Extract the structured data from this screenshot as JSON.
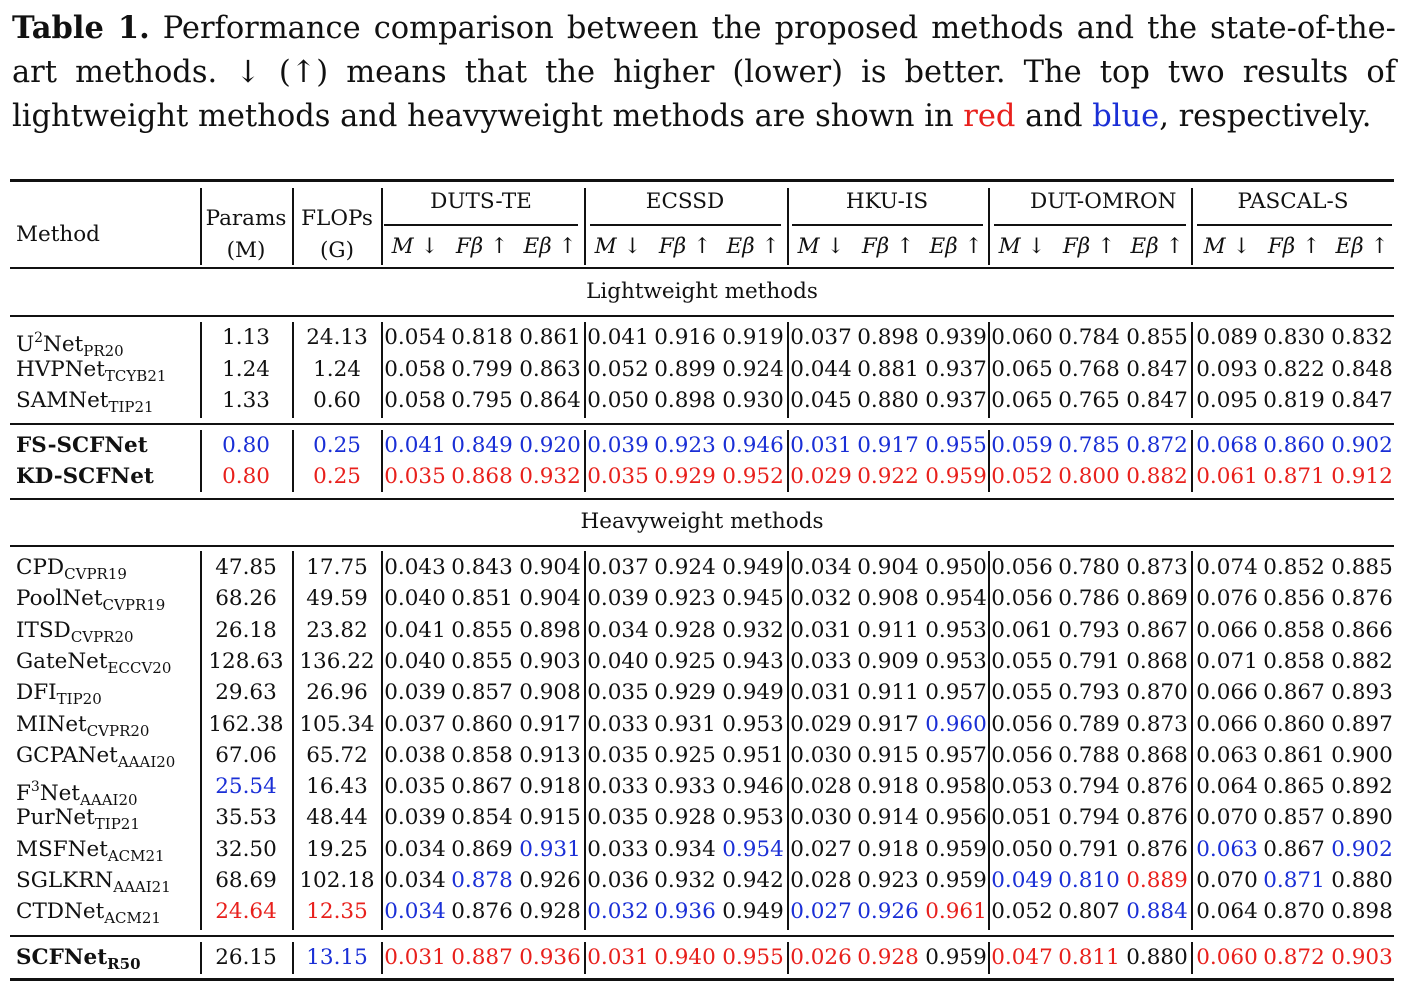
{
  "caption": {
    "label": "Table 1.",
    "text_part1": " Performance comparison between the proposed methods and the state-of-the-art methods. ↓ (↑) means that the higher (lower) is better. The top two results of lightweight methods and heavyweight methods are shown in ",
    "red_word": "red",
    "and_word": " and ",
    "blue_word": "blue",
    "text_end": ", respectively."
  },
  "header": {
    "method": "Method",
    "params_top": "Params",
    "params_unit": "(M)",
    "flops_top": "FLOPs",
    "flops_unit": "(G)",
    "datasets": [
      "DUTS-TE",
      "ECSSD",
      "HKU-IS",
      "DUT-OMRON",
      "PASCAL-S"
    ],
    "metrics": [
      "M ↓",
      "Fβ ↑",
      "Eβ ↑"
    ]
  },
  "sections": {
    "light": "Lightweight methods",
    "heavy": "Heavyweight methods"
  },
  "colors": {
    "red": "#e8201c",
    "blue": "#1a2fd6"
  },
  "rows": [
    {
      "name": "U",
      "sup": "2",
      "name2": "Net",
      "sub": "PR20",
      "bold": false,
      "params": "1.13",
      "flops": "24.13",
      "vals": [
        "0.054",
        "0.818",
        "0.861",
        "0.041",
        "0.916",
        "0.919",
        "0.037",
        "0.898",
        "0.939",
        "0.060",
        "0.784",
        "0.855",
        "0.089",
        "0.830",
        "0.832"
      ],
      "colors": {}
    },
    {
      "name": "HVPNet",
      "sup": "",
      "name2": "",
      "sub": "TCYB21",
      "bold": false,
      "params": "1.24",
      "flops": "1.24",
      "vals": [
        "0.058",
        "0.799",
        "0.863",
        "0.052",
        "0.899",
        "0.924",
        "0.044",
        "0.881",
        "0.937",
        "0.065",
        "0.768",
        "0.847",
        "0.093",
        "0.822",
        "0.848"
      ],
      "colors": {}
    },
    {
      "name": "SAMNet",
      "sup": "",
      "name2": "",
      "sub": "TIP21",
      "bold": false,
      "params": "1.33",
      "flops": "0.60",
      "vals": [
        "0.058",
        "0.795",
        "0.864",
        "0.050",
        "0.898",
        "0.930",
        "0.045",
        "0.880",
        "0.937",
        "0.065",
        "0.765",
        "0.847",
        "0.095",
        "0.819",
        "0.847"
      ],
      "colors": {}
    },
    {
      "name": "FS-SCFNet",
      "sup": "",
      "name2": "",
      "sub": "",
      "bold": true,
      "params": "0.80",
      "flops": "0.25",
      "vals": [
        "0.041",
        "0.849",
        "0.920",
        "0.039",
        "0.923",
        "0.946",
        "0.031",
        "0.917",
        "0.955",
        "0.059",
        "0.785",
        "0.872",
        "0.068",
        "0.860",
        "0.902"
      ],
      "allcolor": "blue",
      "colors": {}
    },
    {
      "name": "KD-SCFNet",
      "sup": "",
      "name2": "",
      "sub": "",
      "bold": true,
      "params": "0.80",
      "flops": "0.25",
      "vals": [
        "0.035",
        "0.868",
        "0.932",
        "0.035",
        "0.929",
        "0.952",
        "0.029",
        "0.922",
        "0.959",
        "0.052",
        "0.800",
        "0.882",
        "0.061",
        "0.871",
        "0.912"
      ],
      "allcolor": "red",
      "colors": {}
    },
    {
      "name": "CPD",
      "sup": "",
      "name2": "",
      "sub": "CVPR19",
      "bold": false,
      "params": "47.85",
      "flops": "17.75",
      "vals": [
        "0.043",
        "0.843",
        "0.904",
        "0.037",
        "0.924",
        "0.949",
        "0.034",
        "0.904",
        "0.950",
        "0.056",
        "0.780",
        "0.873",
        "0.074",
        "0.852",
        "0.885"
      ],
      "colors": {}
    },
    {
      "name": "PoolNet",
      "sup": "",
      "name2": "",
      "sub": "CVPR19",
      "bold": false,
      "params": "68.26",
      "flops": "49.59",
      "vals": [
        "0.040",
        "0.851",
        "0.904",
        "0.039",
        "0.923",
        "0.945",
        "0.032",
        "0.908",
        "0.954",
        "0.056",
        "0.786",
        "0.869",
        "0.076",
        "0.856",
        "0.876"
      ],
      "colors": {}
    },
    {
      "name": "ITSD",
      "sup": "",
      "name2": "",
      "sub": "CVPR20",
      "bold": false,
      "params": "26.18",
      "flops": "23.82",
      "vals": [
        "0.041",
        "0.855",
        "0.898",
        "0.034",
        "0.928",
        "0.932",
        "0.031",
        "0.911",
        "0.953",
        "0.061",
        "0.793",
        "0.867",
        "0.066",
        "0.858",
        "0.866"
      ],
      "colors": {}
    },
    {
      "name": "GateNet",
      "sup": "",
      "name2": "",
      "sub": "ECCV20",
      "bold": false,
      "params": "128.63",
      "flops": "136.22",
      "vals": [
        "0.040",
        "0.855",
        "0.903",
        "0.040",
        "0.925",
        "0.943",
        "0.033",
        "0.909",
        "0.953",
        "0.055",
        "0.791",
        "0.868",
        "0.071",
        "0.858",
        "0.882"
      ],
      "colors": {}
    },
    {
      "name": "DFI",
      "sup": "",
      "name2": "",
      "sub": "TIP20",
      "bold": false,
      "params": "29.63",
      "flops": "26.96",
      "vals": [
        "0.039",
        "0.857",
        "0.908",
        "0.035",
        "0.929",
        "0.949",
        "0.031",
        "0.911",
        "0.957",
        "0.055",
        "0.793",
        "0.870",
        "0.066",
        "0.867",
        "0.893"
      ],
      "colors": {}
    },
    {
      "name": "MINet",
      "sup": "",
      "name2": "",
      "sub": "CVPR20",
      "bold": false,
      "params": "162.38",
      "flops": "105.34",
      "vals": [
        "0.037",
        "0.860",
        "0.917",
        "0.033",
        "0.931",
        "0.953",
        "0.029",
        "0.917",
        "0.960",
        "0.056",
        "0.789",
        "0.873",
        "0.066",
        "0.860",
        "0.897"
      ],
      "colors": {
        "8": "blue"
      }
    },
    {
      "name": "GCPANet",
      "sup": "",
      "name2": "",
      "sub": "AAAI20",
      "bold": false,
      "params": "67.06",
      "flops": "65.72",
      "vals": [
        "0.038",
        "0.858",
        "0.913",
        "0.035",
        "0.925",
        "0.951",
        "0.030",
        "0.915",
        "0.957",
        "0.056",
        "0.788",
        "0.868",
        "0.063",
        "0.861",
        "0.900"
      ],
      "colors": {}
    },
    {
      "name": "F",
      "sup": "3",
      "name2": "Net",
      "sub": "AAAI20",
      "bold": false,
      "params": "25.54",
      "flops": "16.43",
      "params_color": "blue",
      "vals": [
        "0.035",
        "0.867",
        "0.918",
        "0.033",
        "0.933",
        "0.946",
        "0.028",
        "0.918",
        "0.958",
        "0.053",
        "0.794",
        "0.876",
        "0.064",
        "0.865",
        "0.892"
      ],
      "colors": {}
    },
    {
      "name": "PurNet",
      "sup": "",
      "name2": "",
      "sub": "TIP21",
      "bold": false,
      "params": "35.53",
      "flops": "48.44",
      "vals": [
        "0.039",
        "0.854",
        "0.915",
        "0.035",
        "0.928",
        "0.953",
        "0.030",
        "0.914",
        "0.956",
        "0.051",
        "0.794",
        "0.876",
        "0.070",
        "0.857",
        "0.890"
      ],
      "colors": {}
    },
    {
      "name": "MSFNet",
      "sup": "",
      "name2": "",
      "sub": "ACM21",
      "bold": false,
      "params": "32.50",
      "flops": "19.25",
      "vals": [
        "0.034",
        "0.869",
        "0.931",
        "0.033",
        "0.934",
        "0.954",
        "0.027",
        "0.918",
        "0.959",
        "0.050",
        "0.791",
        "0.876",
        "0.063",
        "0.867",
        "0.902"
      ],
      "colors": {
        "2": "blue",
        "5": "blue",
        "12": "blue",
        "14": "blue"
      }
    },
    {
      "name": "SGLKRN",
      "sup": "",
      "name2": "",
      "sub": "AAAI21",
      "bold": false,
      "params": "68.69",
      "flops": "102.18",
      "vals": [
        "0.034",
        "0.878",
        "0.926",
        "0.036",
        "0.932",
        "0.942",
        "0.028",
        "0.923",
        "0.959",
        "0.049",
        "0.810",
        "0.889",
        "0.070",
        "0.871",
        "0.880"
      ],
      "colors": {
        "1": "blue",
        "9": "blue",
        "10": "blue",
        "11": "red",
        "13": "blue"
      }
    },
    {
      "name": "CTDNet",
      "sup": "",
      "name2": "",
      "sub": "ACM21",
      "bold": false,
      "params": "24.64",
      "flops": "12.35",
      "params_color": "red",
      "flops_color": "red",
      "vals": [
        "0.034",
        "0.876",
        "0.928",
        "0.032",
        "0.936",
        "0.949",
        "0.027",
        "0.926",
        "0.961",
        "0.052",
        "0.807",
        "0.884",
        "0.064",
        "0.870",
        "0.898"
      ],
      "colors": {
        "0": "blue",
        "3": "blue",
        "4": "blue",
        "6": "blue",
        "7": "blue",
        "8": "red",
        "11": "blue"
      }
    },
    {
      "name": "SCFNet",
      "sup": "",
      "name2": "",
      "sub": "R50",
      "bold": true,
      "params": "26.15",
      "flops": "13.15",
      "flops_color": "blue",
      "vals": [
        "0.031",
        "0.887",
        "0.936",
        "0.031",
        "0.940",
        "0.955",
        "0.026",
        "0.928",
        "0.959",
        "0.047",
        "0.811",
        "0.880",
        "0.060",
        "0.872",
        "0.903"
      ],
      "colors": {
        "0": "red",
        "1": "red",
        "2": "red",
        "3": "red",
        "4": "red",
        "5": "red",
        "6": "red",
        "7": "red",
        "9": "red",
        "10": "red",
        "12": "red",
        "13": "red",
        "14": "red"
      }
    }
  ]
}
